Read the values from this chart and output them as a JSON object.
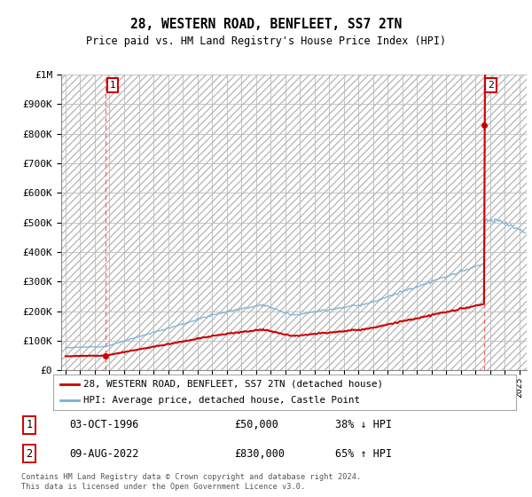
{
  "title": "28, WESTERN ROAD, BENFLEET, SS7 2TN",
  "subtitle": "Price paid vs. HM Land Registry's House Price Index (HPI)",
  "hpi_label": "HPI: Average price, detached house, Castle Point",
  "price_label": "28, WESTERN ROAD, BENFLEET, SS7 2TN (detached house)",
  "t1_date": "03-OCT-1996",
  "t1_price": 50000,
  "t1_hpi_rel": "38% ↓ HPI",
  "t2_date": "09-AUG-2022",
  "t2_price": 830000,
  "t2_hpi_rel": "65% ↑ HPI",
  "price_color": "#cc0000",
  "hpi_color": "#7bafd4",
  "grid_color": "#cccccc",
  "footnote": "Contains HM Land Registry data © Crown copyright and database right 2024.\nThis data is licensed under the Open Government Licence v3.0.",
  "ylim": [
    0,
    1000000
  ],
  "xlim_start": 1993.7,
  "xlim_end": 2025.5,
  "yticks": [
    0,
    100000,
    200000,
    300000,
    400000,
    500000,
    600000,
    700000,
    800000,
    900000,
    1000000
  ],
  "ylabels": [
    "£0",
    "£100K",
    "£200K",
    "£300K",
    "£400K",
    "£500K",
    "£600K",
    "£700K",
    "£800K",
    "£900K",
    "£1M"
  ]
}
